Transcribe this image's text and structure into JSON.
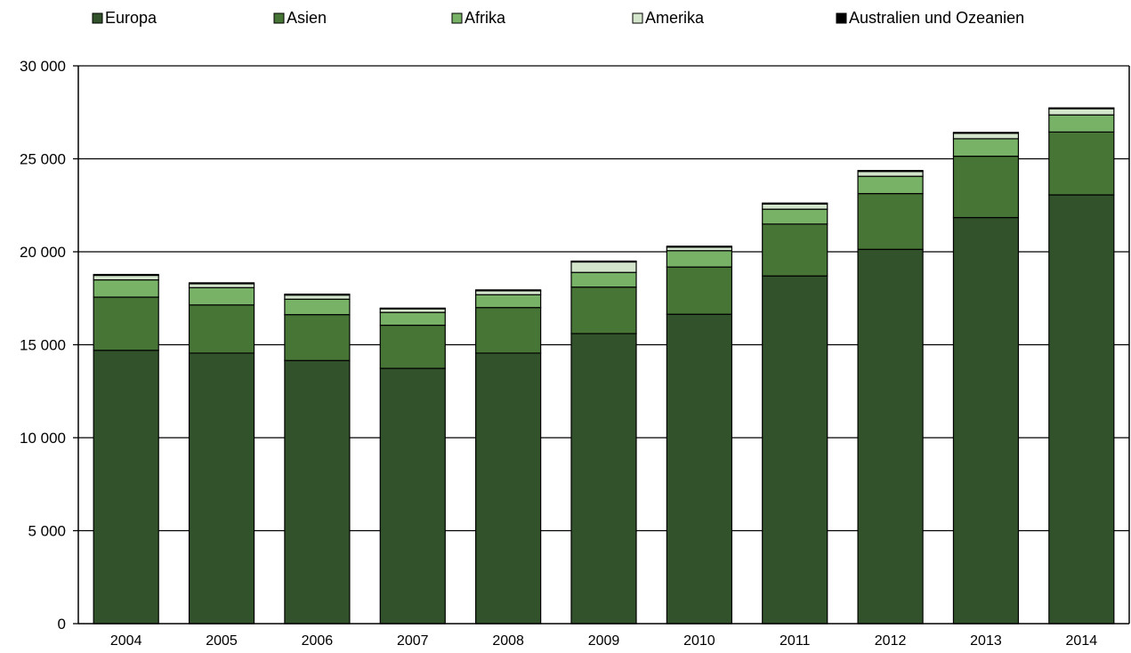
{
  "chart_data": {
    "type": "bar",
    "stacked": true,
    "categories": [
      "2004",
      "2005",
      "2006",
      "2007",
      "2008",
      "2009",
      "2010",
      "2011",
      "2012",
      "2013",
      "2014"
    ],
    "series": [
      {
        "name": "Europa",
        "color": "#31522a",
        "values": [
          14700,
          14550,
          14150,
          13730,
          14550,
          15600,
          16640,
          18700,
          20130,
          21840,
          23060
        ]
      },
      {
        "name": "Asien",
        "color": "#477536",
        "values": [
          2860,
          2590,
          2470,
          2320,
          2450,
          2500,
          2540,
          2790,
          3000,
          3300,
          3380
        ]
      },
      {
        "name": "Afrika",
        "color": "#78b266",
        "values": [
          930,
          930,
          830,
          690,
          690,
          790,
          880,
          800,
          930,
          940,
          920
        ]
      },
      {
        "name": "Amerika",
        "color": "#d3e6cb",
        "values": [
          240,
          210,
          220,
          190,
          210,
          560,
          190,
          280,
          260,
          290,
          330
        ]
      },
      {
        "name": "Australien und Ozeanien",
        "color": "#000000",
        "values": [
          50,
          50,
          50,
          40,
          50,
          50,
          50,
          50,
          50,
          50,
          50
        ]
      }
    ],
    "ylim": [
      0,
      30000
    ],
    "yticks": [
      0,
      5000,
      10000,
      15000,
      20000,
      25000,
      30000
    ],
    "ytick_labels": [
      "0",
      "5 000",
      "10 000",
      "15 000",
      "20 000",
      "25 000",
      "30 000"
    ],
    "grid": true,
    "legend_position": "top",
    "title": "",
    "xlabel": "",
    "ylabel": ""
  }
}
